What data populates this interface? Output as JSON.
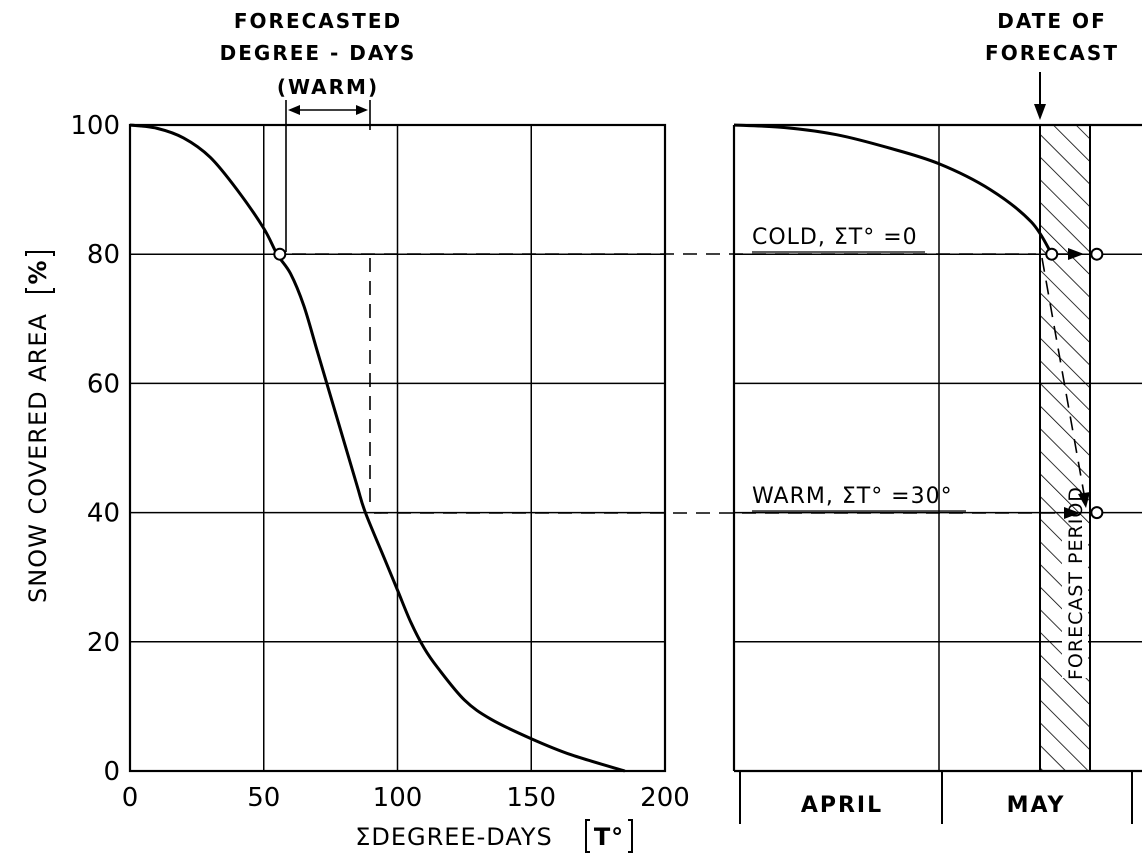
{
  "chart_data": [
    {
      "type": "line",
      "title": "",
      "xlabel": "ΣDEGREE-DAYS",
      "xunit": "T°",
      "ylabel": "SNOW COVERED AREA",
      "yunit": "%",
      "xlim": [
        0,
        200
      ],
      "ylim": [
        0,
        100
      ],
      "xticks": [
        "0",
        "50",
        "100",
        "150",
        "200"
      ],
      "yticks": [
        "0",
        "20",
        "40",
        "60",
        "80",
        "100"
      ],
      "grid": true,
      "series": [
        {
          "x": [
            0,
            10,
            20,
            30,
            40,
            50,
            55,
            60,
            65,
            70,
            75,
            80,
            85,
            88,
            95,
            100,
            105,
            110,
            115,
            125,
            135,
            150,
            165,
            185
          ],
          "y": [
            100,
            99.5,
            98,
            95,
            90,
            84,
            80,
            77,
            72,
            65,
            58,
            51,
            44,
            40,
            33,
            28,
            23,
            19,
            16,
            11,
            8,
            5,
            2.5,
            0
          ]
        }
      ],
      "points": [
        {
          "x": 56,
          "y": 80
        },
        {
          "x": 88,
          "y": 40
        }
      ],
      "annotations": {
        "forecast_label": [
          "FORECASTED",
          "DEGREE - DAYS"
        ],
        "warm_label": "(WARM)"
      }
    },
    {
      "type": "line",
      "title": "",
      "ylim": [
        0,
        100
      ],
      "categories": [
        "APRIL",
        "MAY"
      ],
      "grid": true,
      "series": [
        {
          "x": [
            0,
            0.25,
            0.5,
            0.75,
            1.0,
            1.25,
            1.45,
            1.55
          ],
          "y": [
            100,
            99.6,
            98.5,
            96.5,
            94,
            90,
            85,
            80
          ]
        }
      ],
      "forecast_point": {
        "x": 1.55,
        "y": 80
      },
      "cold_point": {
        "x": 1.77,
        "y": 80
      },
      "warm_point": {
        "x": 1.77,
        "y": 40
      },
      "annotations": {
        "date_label": [
          "DATE OF",
          "FORECAST"
        ],
        "cold": "COLD, ΣT° =0",
        "warm": "WARM, ΣT° =30°",
        "period": "FORECAST PERIOD"
      }
    }
  ]
}
